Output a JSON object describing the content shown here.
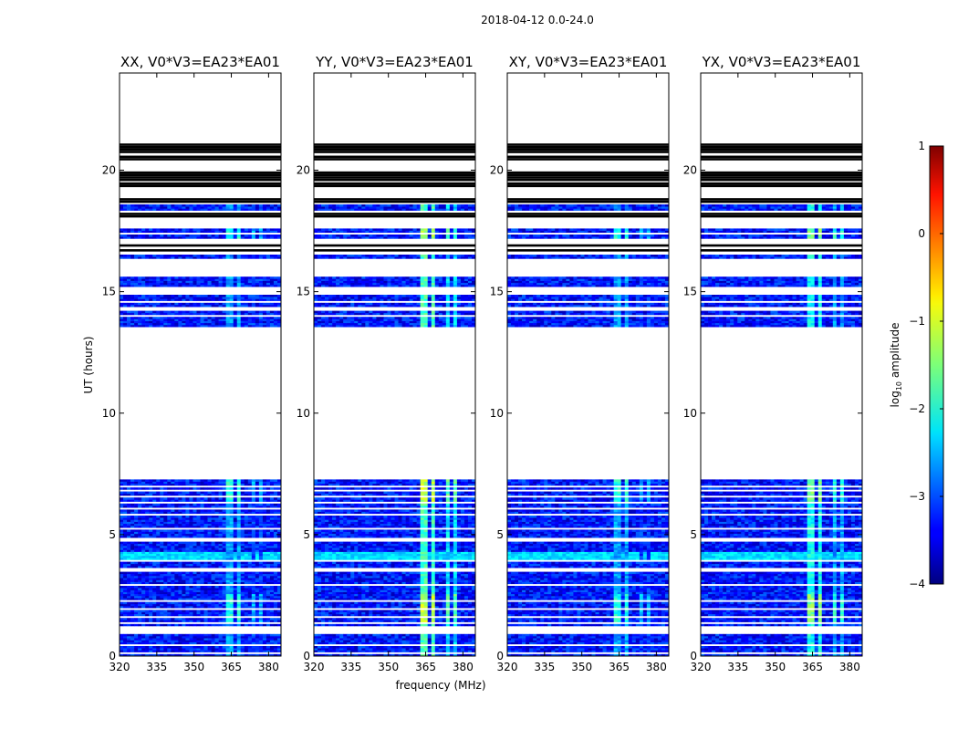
{
  "chart_data": {
    "type": "heatmap",
    "suptitle": "2018-04-12 0.0-24.0",
    "xlabel": "frequency (MHz)",
    "ylabel": "UT (hours)",
    "colorbar_label_prefix": "log",
    "colorbar_label_sub": "10",
    "colorbar_label_suffix": " amplitude",
    "xlim": [
      320,
      385
    ],
    "ylim": [
      0,
      24
    ],
    "clim": [
      -4,
      1
    ],
    "xticks": [
      320,
      335,
      350,
      365,
      380
    ],
    "yticks": [
      0,
      5,
      10,
      15,
      20
    ],
    "cticks": [
      -4,
      -3,
      -2,
      -1,
      0,
      1
    ],
    "colormap": "jet",
    "panels": [
      {
        "title": "XX, V0*V3=EA23*EA01",
        "rfi_level": -2.0
      },
      {
        "title": "YY, V0*V3=EA23*EA01",
        "rfi_level": -1.2
      },
      {
        "title": "XY, V0*V3=EA23*EA01",
        "rfi_level": -2.0
      },
      {
        "title": "YX, V0*V3=EA23*EA01",
        "rfi_level": -1.5
      }
    ],
    "data_time_ranges_hours": [
      [
        0.0,
        7.2
      ],
      [
        13.5,
        14.85
      ],
      [
        15.2,
        15.55
      ],
      [
        16.3,
        16.5
      ],
      [
        17.15,
        17.6
      ],
      [
        18.3,
        18.55
      ]
    ],
    "empty_time_rows_hours": [
      0.1,
      0.45,
      0.95,
      1.05,
      1.15,
      1.35,
      1.6,
      1.9,
      2.2,
      2.9,
      3.45,
      3.55,
      3.9,
      4.75,
      5.2,
      5.8,
      6.0,
      6.3,
      6.55,
      6.8,
      6.95,
      13.95,
      14.25,
      14.55,
      17.35
    ],
    "flagged_time_rows_hours": [
      18.1,
      18.2,
      18.7,
      18.8,
      19.35,
      19.45,
      19.6,
      19.7,
      19.8,
      19.9,
      20.45,
      20.55,
      20.75,
      20.85,
      20.95,
      21.05,
      16.7,
      16.9
    ],
    "rfi_channels_mhz": [
      [
        363.5,
        365.5
      ],
      [
        367.0,
        369.0
      ],
      [
        373.5,
        375.0
      ],
      [
        376.5,
        378.0
      ]
    ],
    "background_level": -3.3,
    "band_4h_level": -2.3
  }
}
